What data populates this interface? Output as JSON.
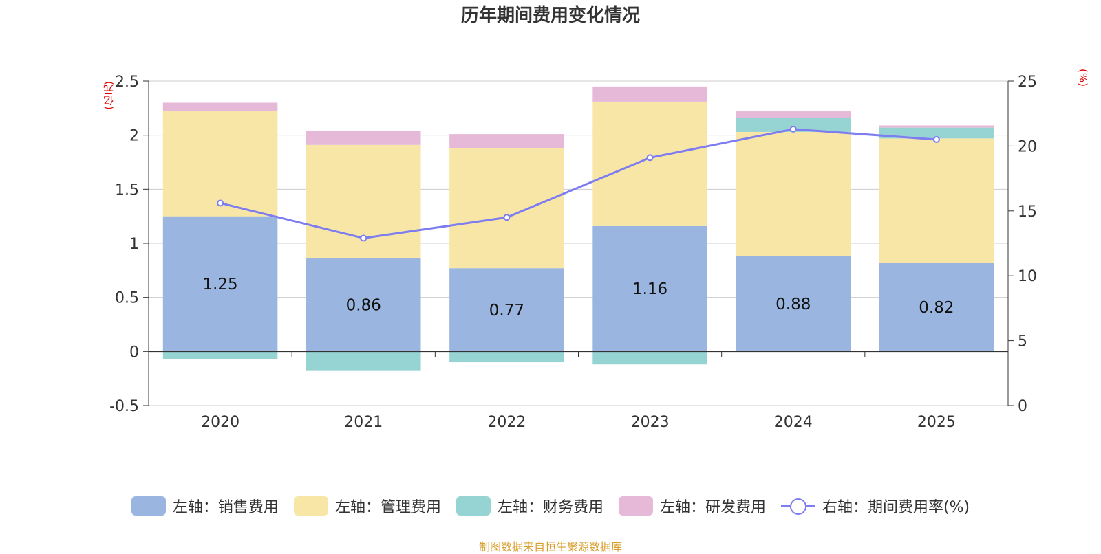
{
  "title": "历年期间费用变化情况",
  "unit_left": "(亿元)",
  "unit_right": "(%)",
  "source": "制图数据来自恒生聚源数据库",
  "colors": {
    "sales": "#9ab6e0",
    "admin": "#f7e6a6",
    "finance": "#96d3d3",
    "rd": "#e6b9d9",
    "rate": "#7d7cf0",
    "unit": "#e00000",
    "source": "#d8a030"
  },
  "legend": [
    {
      "label": "左轴：销售费用",
      "kind": "bar",
      "color": "#9ab6e0"
    },
    {
      "label": "左轴：管理费用",
      "kind": "bar",
      "color": "#f7e6a6"
    },
    {
      "label": "左轴：财务费用",
      "kind": "bar",
      "color": "#96d3d3"
    },
    {
      "label": "左轴：研发费用",
      "kind": "bar",
      "color": "#e6b9d9"
    },
    {
      "label": "右轴：期间费用率(%)",
      "kind": "line",
      "color": "#7d7cf0"
    }
  ],
  "chart_data": {
    "type": "bar",
    "stacked": true,
    "title": "历年期间费用变化情况",
    "categories": [
      "2020",
      "2021",
      "2022",
      "2023",
      "2024",
      "2025"
    ],
    "series": [
      {
        "name": "左轴：销售费用",
        "axis": "left",
        "values": [
          1.25,
          0.86,
          0.77,
          1.16,
          0.88,
          0.82
        ],
        "labels": [
          "1.25",
          "0.86",
          "0.77",
          "1.16",
          "0.88",
          "0.82"
        ]
      },
      {
        "name": "左轴：管理费用",
        "axis": "left",
        "values": [
          0.97,
          1.05,
          1.11,
          1.15,
          1.15,
          1.15
        ]
      },
      {
        "name": "左轴：财务费用",
        "axis": "left",
        "values": [
          -0.07,
          -0.18,
          -0.1,
          -0.12,
          0.13,
          0.1
        ]
      },
      {
        "name": "左轴：研发费用",
        "axis": "left",
        "values": [
          0.08,
          0.13,
          0.13,
          0.14,
          0.06,
          0.02
        ]
      },
      {
        "name": "右轴：期间费用率(%)",
        "axis": "right",
        "type": "line",
        "values": [
          15.6,
          12.9,
          14.5,
          19.1,
          21.3,
          20.5
        ]
      }
    ],
    "y_left": {
      "label": "(亿元)",
      "min": -0.5,
      "max": 2.5,
      "ticks": [
        "-0.5",
        "0",
        "0.5",
        "1",
        "1.5",
        "2",
        "2.5"
      ]
    },
    "y_right": {
      "label": "(%)",
      "min": 0,
      "max": 25,
      "ticks": [
        "0",
        "5",
        "10",
        "15",
        "20",
        "25"
      ]
    },
    "grid": true,
    "legend_position": "bottom"
  }
}
